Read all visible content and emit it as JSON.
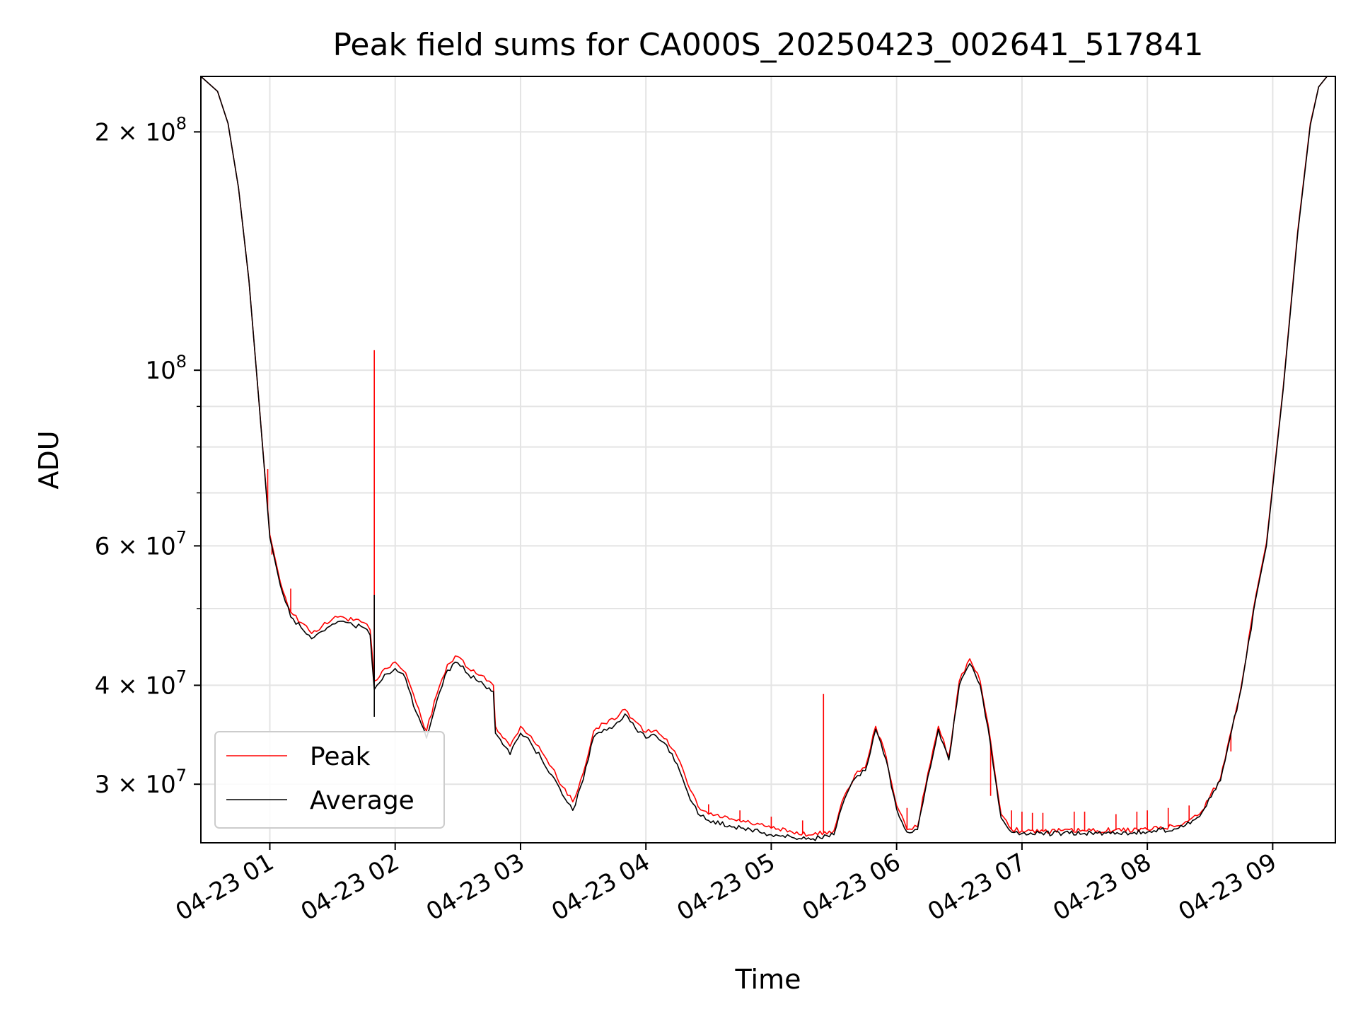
{
  "chart_data": {
    "type": "line",
    "title": "Peak field sums for CA000S_20250423_002641_517841",
    "xlabel": "Time",
    "ylabel": "ADU",
    "y_scale": "log",
    "x_range": [
      "2025-04-23T00:27",
      "2025-04-23T09:30"
    ],
    "ylim": [
      25300000,
      235000000
    ],
    "grid": true,
    "legend_position": "lower-left",
    "x_ticks": [
      {
        "t": "2025-04-23T01:00",
        "label": "04-23 01"
      },
      {
        "t": "2025-04-23T02:00",
        "label": "04-23 02"
      },
      {
        "t": "2025-04-23T03:00",
        "label": "04-23 03"
      },
      {
        "t": "2025-04-23T04:00",
        "label": "04-23 04"
      },
      {
        "t": "2025-04-23T05:00",
        "label": "04-23 05"
      },
      {
        "t": "2025-04-23T06:00",
        "label": "04-23 06"
      },
      {
        "t": "2025-04-23T07:00",
        "label": "04-23 07"
      },
      {
        "t": "2025-04-23T08:00",
        "label": "04-23 08"
      },
      {
        "t": "2025-04-23T09:00",
        "label": "04-23 09"
      }
    ],
    "y_ticks": [
      {
        "value": 200000000,
        "mant": "2 × 10",
        "exp": "8"
      },
      {
        "value": 100000000,
        "mant": "10",
        "exp": "8"
      },
      {
        "value": 60000000,
        "mant": "6 × 10",
        "exp": "7"
      },
      {
        "value": 40000000,
        "mant": "4 × 10",
        "exp": "7"
      },
      {
        "value": 30000000,
        "mant": "3 × 10",
        "exp": "7"
      }
    ],
    "y_minor_ticks": [
      50000000,
      70000000,
      80000000,
      90000000
    ],
    "series": [
      {
        "name": "Peak",
        "color": "#ff0000",
        "points": [
          [
            "00:27",
            235000000
          ],
          [
            "00:35",
            225000000
          ],
          [
            "00:40",
            205000000
          ],
          [
            "00:45",
            170000000
          ],
          [
            "00:50",
            130000000
          ],
          [
            "00:55",
            90000000
          ],
          [
            "01:00",
            62000000
          ],
          [
            "01:05",
            54000000
          ],
          [
            "01:10",
            49500000
          ],
          [
            "01:15",
            48000000
          ],
          [
            "01:20",
            46500000
          ],
          [
            "01:25",
            47500000
          ],
          [
            "01:30",
            48500000
          ],
          [
            "01:35",
            48800000
          ],
          [
            "01:40",
            48300000
          ],
          [
            "01:45",
            48000000
          ],
          [
            "01:48",
            47000000
          ],
          [
            "01:50",
            40500000
          ],
          [
            "01:55",
            42000000
          ],
          [
            "02:00",
            42800000
          ],
          [
            "02:05",
            41500000
          ],
          [
            "02:10",
            38000000
          ],
          [
            "02:15",
            35000000
          ],
          [
            "02:20",
            39000000
          ],
          [
            "02:25",
            42500000
          ],
          [
            "02:30",
            43500000
          ],
          [
            "02:35",
            42000000
          ],
          [
            "02:40",
            41200000
          ],
          [
            "02:45",
            40500000
          ],
          [
            "02:47",
            40000000
          ],
          [
            "02:48",
            35500000
          ],
          [
            "02:55",
            33500000
          ],
          [
            "03:00",
            35500000
          ],
          [
            "03:05",
            34500000
          ],
          [
            "03:10",
            33000000
          ],
          [
            "03:15",
            31500000
          ],
          [
            "03:20",
            29800000
          ],
          [
            "03:25",
            28500000
          ],
          [
            "03:30",
            31000000
          ],
          [
            "03:35",
            35000000
          ],
          [
            "03:40",
            35800000
          ],
          [
            "03:45",
            36200000
          ],
          [
            "03:50",
            37300000
          ],
          [
            "03:55",
            36000000
          ],
          [
            "04:00",
            34900000
          ],
          [
            "04:05",
            35100000
          ],
          [
            "04:10",
            34200000
          ],
          [
            "04:15",
            32500000
          ],
          [
            "04:20",
            30000000
          ],
          [
            "04:25",
            28100000
          ],
          [
            "04:30",
            27500000
          ],
          [
            "04:40",
            27100000
          ],
          [
            "04:50",
            26800000
          ],
          [
            "05:00",
            26400000
          ],
          [
            "05:10",
            26100000
          ],
          [
            "05:20",
            25900000
          ],
          [
            "05:30",
            26200000
          ],
          [
            "05:35",
            29000000
          ],
          [
            "05:40",
            30800000
          ],
          [
            "05:45",
            31500000
          ],
          [
            "05:50",
            35500000
          ],
          [
            "05:55",
            32500000
          ],
          [
            "06:00",
            28200000
          ],
          [
            "06:05",
            26300000
          ],
          [
            "06:10",
            26500000
          ],
          [
            "06:15",
            31000000
          ],
          [
            "06:20",
            35500000
          ],
          [
            "06:25",
            32500000
          ],
          [
            "06:30",
            40500000
          ],
          [
            "06:35",
            43200000
          ],
          [
            "06:40",
            40500000
          ],
          [
            "06:45",
            34000000
          ],
          [
            "06:50",
            27500000
          ],
          [
            "06:55",
            26300000
          ],
          [
            "07:00",
            26200000
          ],
          [
            "07:30",
            26200000
          ],
          [
            "08:00",
            26300000
          ],
          [
            "08:15",
            26600000
          ],
          [
            "08:25",
            27500000
          ],
          [
            "08:35",
            30500000
          ],
          [
            "08:45",
            40000000
          ],
          [
            "08:52",
            52000000
          ],
          [
            "08:57",
            60500000
          ],
          [
            "09:05",
            95000000
          ],
          [
            "09:12",
            150000000
          ],
          [
            "09:18",
            205000000
          ],
          [
            "09:22",
            228000000
          ],
          [
            "09:26",
            235000000
          ],
          [
            "09:30",
            235000000
          ]
        ],
        "spikes": [
          [
            "00:59",
            75000000
          ],
          [
            "01:01",
            58500000
          ],
          [
            "01:10",
            53000000
          ],
          [
            "01:50",
            106000000
          ],
          [
            "05:25",
            39000000
          ],
          [
            "04:30",
            28300000
          ],
          [
            "04:45",
            27800000
          ],
          [
            "05:00",
            27300000
          ],
          [
            "05:15",
            27000000
          ],
          [
            "06:05",
            28000000
          ],
          [
            "06:45",
            29000000
          ],
          [
            "06:55",
            27800000
          ],
          [
            "07:00",
            27700000
          ],
          [
            "07:05",
            27600000
          ],
          [
            "07:10",
            27600000
          ],
          [
            "07:25",
            27700000
          ],
          [
            "07:30",
            27700000
          ],
          [
            "07:45",
            27500000
          ],
          [
            "07:55",
            27700000
          ],
          [
            "08:00",
            27800000
          ],
          [
            "08:10",
            28000000
          ],
          [
            "08:20",
            28200000
          ],
          [
            "08:30",
            29000000
          ],
          [
            "08:40",
            33000000
          ]
        ]
      },
      {
        "name": "Average",
        "color": "#000000",
        "points": [
          [
            "00:27",
            235000000
          ],
          [
            "00:35",
            225000000
          ],
          [
            "00:40",
            205000000
          ],
          [
            "00:45",
            170000000
          ],
          [
            "00:50",
            130000000
          ],
          [
            "00:55",
            90000000
          ],
          [
            "01:00",
            61500000
          ],
          [
            "01:05",
            53500000
          ],
          [
            "01:10",
            48800000
          ],
          [
            "01:15",
            47300000
          ],
          [
            "01:20",
            45800000
          ],
          [
            "01:25",
            46800000
          ],
          [
            "01:30",
            47800000
          ],
          [
            "01:35",
            48200000
          ],
          [
            "01:40",
            47600000
          ],
          [
            "01:45",
            47300000
          ],
          [
            "01:48",
            46300000
          ],
          [
            "01:50",
            39500000
          ],
          [
            "01:55",
            41300000
          ],
          [
            "02:00",
            42000000
          ],
          [
            "02:05",
            40800000
          ],
          [
            "02:10",
            37000000
          ],
          [
            "02:15",
            34300000
          ],
          [
            "02:20",
            38300000
          ],
          [
            "02:25",
            41800000
          ],
          [
            "02:30",
            42700000
          ],
          [
            "02:35",
            41300000
          ],
          [
            "02:40",
            40400000
          ],
          [
            "02:45",
            39700000
          ],
          [
            "02:47",
            39300000
          ],
          [
            "02:48",
            34800000
          ],
          [
            "02:55",
            32700000
          ],
          [
            "03:00",
            34800000
          ],
          [
            "03:05",
            33800000
          ],
          [
            "03:10",
            32300000
          ],
          [
            "03:15",
            30800000
          ],
          [
            "03:20",
            29100000
          ],
          [
            "03:25",
            27800000
          ],
          [
            "03:30",
            30400000
          ],
          [
            "03:35",
            34400000
          ],
          [
            "03:40",
            35200000
          ],
          [
            "03:45",
            35600000
          ],
          [
            "03:50",
            36800000
          ],
          [
            "03:55",
            35300000
          ],
          [
            "04:00",
            34300000
          ],
          [
            "04:05",
            34500000
          ],
          [
            "04:10",
            33600000
          ],
          [
            "04:15",
            31800000
          ],
          [
            "04:20",
            29300000
          ],
          [
            "04:25",
            27500000
          ],
          [
            "04:30",
            27000000
          ],
          [
            "04:40",
            26600000
          ],
          [
            "04:50",
            26300000
          ],
          [
            "05:00",
            25900000
          ],
          [
            "05:10",
            25700000
          ],
          [
            "05:20",
            25600000
          ],
          [
            "05:30",
            25900000
          ],
          [
            "05:35",
            28700000
          ],
          [
            "05:40",
            30500000
          ],
          [
            "05:45",
            31200000
          ],
          [
            "05:50",
            35200000
          ],
          [
            "05:55",
            32200000
          ],
          [
            "06:00",
            27900000
          ],
          [
            "06:05",
            26100000
          ],
          [
            "06:10",
            26300000
          ],
          [
            "06:15",
            30700000
          ],
          [
            "06:20",
            35200000
          ],
          [
            "06:25",
            32200000
          ],
          [
            "06:30",
            40000000
          ],
          [
            "06:35",
            42600000
          ],
          [
            "06:40",
            40000000
          ],
          [
            "06:45",
            33600000
          ],
          [
            "06:50",
            27200000
          ],
          [
            "06:55",
            26100000
          ],
          [
            "07:00",
            26000000
          ],
          [
            "07:30",
            26000000
          ],
          [
            "08:00",
            26100000
          ],
          [
            "08:15",
            26400000
          ],
          [
            "08:25",
            27300000
          ],
          [
            "08:35",
            30300000
          ],
          [
            "08:45",
            39700000
          ],
          [
            "08:52",
            51600000
          ],
          [
            "08:57",
            60000000
          ],
          [
            "09:05",
            94500000
          ],
          [
            "09:12",
            149000000
          ],
          [
            "09:18",
            204000000
          ],
          [
            "09:22",
            228000000
          ],
          [
            "09:26",
            235000000
          ],
          [
            "09:30",
            235000000
          ]
        ],
        "spikes": [
          [
            "01:50",
            52000000
          ],
          [
            "01:50",
            36500000
          ]
        ]
      }
    ]
  }
}
